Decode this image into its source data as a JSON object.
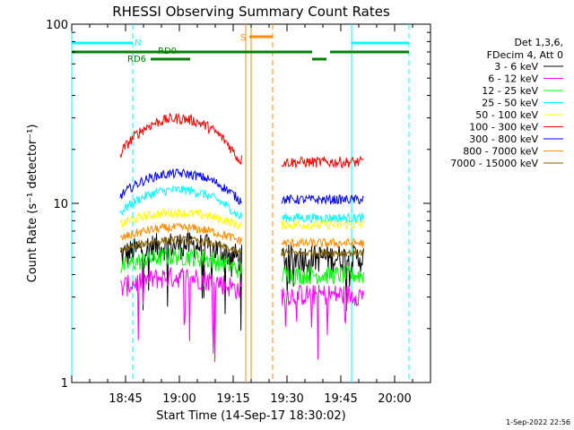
{
  "chart_data": {
    "type": "line",
    "title": "RHESSI Observing Summary Count Rates",
    "xlabel": "Start Time (14-Sep-17 18:30:02)",
    "ylabel": "Count Rate (s⁻¹ detector⁻¹)",
    "y_scale": "log",
    "ylim": [
      1,
      100
    ],
    "y_ticks": [
      "1",
      "10",
      "100"
    ],
    "x_range_minutes": [
      0,
      100
    ],
    "x_ticks": [
      {
        "label": "18:45",
        "minutes": 15
      },
      {
        "label": "19:00",
        "minutes": 30
      },
      {
        "label": "19:15",
        "minutes": 45
      },
      {
        "label": "19:30",
        "minutes": 60
      },
      {
        "label": "19:45",
        "minutes": 75
      },
      {
        "label": "20:00",
        "minutes": 90
      }
    ],
    "legend_header": [
      "Det 1,3,6,",
      "FDecim 4, Att 0"
    ],
    "legend_position": "right",
    "series": [
      {
        "name": "3 - 6 keV",
        "color": "#000000",
        "level_a": 5.0,
        "level_b": 5.0,
        "jitter": 0.18
      },
      {
        "name": "6 - 12 keV",
        "color": "#ff00ff",
        "level_a": 3.3,
        "level_b": 3.1,
        "jitter": 0.14
      },
      {
        "name": "12 - 25 keV",
        "color": "#00ff00",
        "level_a": 4.3,
        "level_b": 4.0,
        "jitter": 0.12
      },
      {
        "name": "25 - 50 keV",
        "color": "#00ffff",
        "level_a": 8.5,
        "level_b": 8.3,
        "jitter": 0.06
      },
      {
        "name": "50 - 100 keV",
        "color": "#ffff00",
        "level_a": 7.5,
        "level_b": 7.6,
        "jitter": 0.06
      },
      {
        "name": "100 - 300 keV",
        "color": "#ff0000",
        "level_a": 17.5,
        "level_b": 17.0,
        "jitter": 0.07
      },
      {
        "name": "300 - 800 keV",
        "color": "#0000ff",
        "level_a": 10.5,
        "level_b": 10.5,
        "jitter": 0.06
      },
      {
        "name": "800 - 7000 keV",
        "color": "#ff8c00",
        "level_a": 6.2,
        "level_b": 6.0,
        "jitter": 0.06
      },
      {
        "name": "7000 - 15000 keV",
        "color": "#806000",
        "level_a": 5.3,
        "level_b": 5.3,
        "jitter": 0.05
      }
    ],
    "data_segments_minutes": [
      [
        13.5,
        47.5
      ],
      [
        58.5,
        81.5
      ]
    ],
    "orbit_bars": {
      "N": {
        "label": "N",
        "color": "#00ffff",
        "segments": [
          [
            0,
            17
          ],
          [
            78,
            94
          ]
        ]
      },
      "S": {
        "label": "S",
        "color": "#ff8c00",
        "segments": [
          [
            49.5,
            56
          ]
        ]
      },
      "RD": {
        "color": "#008000",
        "segments": [
          [
            0,
            67
          ],
          [
            72,
            94
          ]
        ],
        "small_segments": [
          [
            22,
            33
          ],
          [
            67,
            71
          ]
        ],
        "labels": [
          "RD0",
          "RD6"
        ]
      }
    },
    "vertical_lines": [
      {
        "minutes": 0,
        "color": "#00ffff",
        "style": "solid"
      },
      {
        "minutes": 17,
        "color": "#00ffff",
        "style": "dashed"
      },
      {
        "minutes": 48.5,
        "color": "#ff8c00",
        "style": "solid"
      },
      {
        "minutes": 50,
        "color": "#ff8c00",
        "style": "solid"
      },
      {
        "minutes": 56,
        "color": "#ff8c00",
        "style": "dashed"
      },
      {
        "minutes": 78,
        "color": "#00ffff",
        "style": "solid"
      },
      {
        "minutes": 94,
        "color": "#00ffff",
        "style": "dashed"
      }
    ]
  },
  "footer_date": "1-Sep-2022 22:56"
}
